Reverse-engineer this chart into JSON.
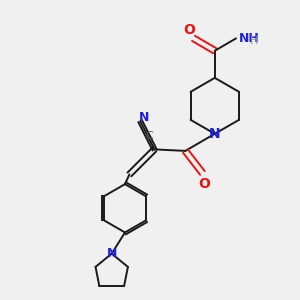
{
  "bg_color": "#f0f0f0",
  "bond_color": "#1a1a1a",
  "N_color": "#2020dd",
  "O_color": "#ee1111",
  "C_label_color": "#555555",
  "H_color": "#8a9a8a",
  "figsize": [
    3.0,
    3.0
  ],
  "dpi": 100,
  "xlim": [
    0,
    10
  ],
  "ylim": [
    0,
    10
  ]
}
